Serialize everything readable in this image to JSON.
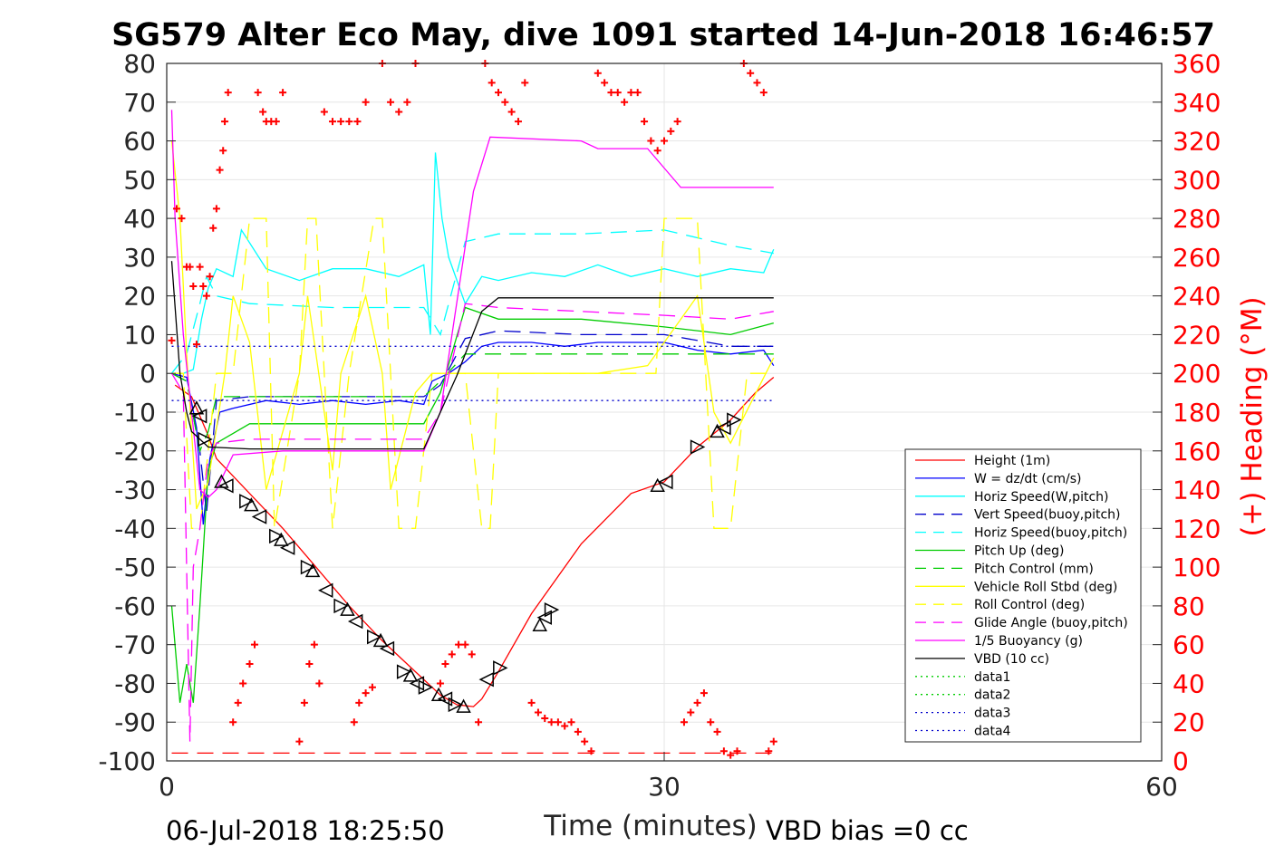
{
  "chart_data": {
    "type": "line",
    "title": "SG579 Alter Eco May, dive 1091 started 14-Jun-2018 16:46:57",
    "xlabel": "Time (minutes)",
    "ylabel": "",
    "ylabel_right": "(+) Heading (°M)",
    "xlim": [
      0,
      60
    ],
    "ylim": [
      -100,
      80
    ],
    "ylim_right": [
      0,
      360
    ],
    "xticks": [
      "0",
      "30",
      "60"
    ],
    "yticks": [
      "80",
      "70",
      "60",
      "50",
      "40",
      "30",
      "20",
      "10",
      "0",
      "-10",
      "-20",
      "-30",
      "-40",
      "-50",
      "-60",
      "-70",
      "-80",
      "-90",
      "-100"
    ],
    "yticks_right": [
      "360",
      "340",
      "320",
      "300",
      "280",
      "260",
      "240",
      "220",
      "200",
      "180",
      "160",
      "140",
      "120",
      "100",
      "80",
      "60",
      "40",
      "20",
      "0"
    ],
    "grid": true,
    "legend_position": "lower-right",
    "footer_left": "06-Jul-2018 18:25:50",
    "footer_right": "VBD bias =0 cc",
    "colors": {
      "red": "#ff0000",
      "blue": "#0000ff",
      "darkblue": "#0000cc",
      "cyan": "#00ffff",
      "green": "#00cc00",
      "yellow": "#ffff00",
      "magenta": "#ff00ff",
      "black": "#000000"
    },
    "series": [
      {
        "name": "Height (1m)",
        "color": "#ff0000",
        "style": "solid",
        "x": [
          0.5,
          1.5,
          2.0,
          2.5,
          3.0,
          5.0,
          7.0,
          9.0,
          11.0,
          13.0,
          15.0,
          16.5,
          17.5,
          18.5,
          19.0,
          20.0,
          22.0,
          25.0,
          28.0,
          30.0,
          32.0,
          34.0,
          35.5,
          36.6
        ],
        "y": [
          -3,
          -6,
          -11,
          -16,
          -22,
          -31,
          -40,
          -50,
          -60,
          -69,
          -77,
          -83,
          -85.5,
          -86,
          -84,
          -77,
          -62,
          -44,
          -31,
          -28,
          -19,
          -12,
          -5,
          -1
        ]
      },
      {
        "name": "W = dz/dt (cm/s)",
        "color": "#0000ff",
        "style": "solid",
        "x": [
          0.3,
          1.2,
          1.8,
          2.2,
          2.6,
          3.2,
          4.0,
          6.0,
          8.0,
          10.0,
          12.0,
          14.0,
          15.5,
          16.0,
          17.0,
          18.0,
          19.0,
          20.0,
          22.0,
          24.0,
          26.0,
          28.0,
          30.0,
          32.0,
          34.0,
          36.0,
          36.6
        ],
        "y": [
          0,
          -1,
          -14,
          -39,
          -22,
          -10,
          -9,
          -7,
          -8,
          -7,
          -8,
          -7,
          -8,
          -2,
          0,
          3,
          7,
          8,
          8,
          7,
          8,
          8,
          8,
          6,
          5,
          6,
          2
        ]
      },
      {
        "name": "Horiz Speed(W,pitch)",
        "color": "#00ffff",
        "style": "solid",
        "x": [
          0.3,
          1.0,
          1.6,
          2.1,
          2.5,
          3.0,
          4.0,
          4.5,
          6.0,
          8.0,
          10.0,
          12.0,
          14.0,
          15.5,
          15.9,
          16.2,
          16.6,
          17.0,
          18.0,
          19.0,
          20.0,
          22.0,
          24.0,
          26.0,
          28.0,
          30.0,
          32.0,
          34.0,
          36.0,
          36.6
        ],
        "y": [
          0,
          0,
          1,
          14,
          22,
          27,
          25,
          37,
          27,
          24,
          27,
          27,
          25,
          28,
          10,
          57,
          40,
          30,
          18,
          25,
          24,
          26,
          25,
          28,
          25,
          27,
          25,
          27,
          26,
          32
        ]
      },
      {
        "name": "Vert Speed(buoy,pitch)",
        "color": "#0000cc",
        "style": "dashed",
        "x": [
          0.3,
          1.2,
          2.0,
          2.4,
          3.0,
          5.0,
          10.0,
          15.5,
          16.5,
          18.0,
          20.0,
          25.0,
          30.0,
          34.0,
          36.6
        ],
        "y": [
          0,
          -2,
          -20,
          -36,
          -7,
          -6,
          -6,
          -6,
          -3,
          9,
          11,
          10,
          10,
          7,
          7
        ]
      },
      {
        "name": "Horiz Speed(buoy,pitch)",
        "color": "#00ffff",
        "style": "dashed",
        "x": [
          0.3,
          1.2,
          2.0,
          2.4,
          3.0,
          5.0,
          10.0,
          15.5,
          16.5,
          18.0,
          20.0,
          25.0,
          30.0,
          34.0,
          36.6
        ],
        "y": [
          0,
          5,
          18,
          25,
          20,
          18,
          17,
          17,
          10,
          34,
          36,
          36,
          37,
          33,
          31
        ]
      },
      {
        "name": "Pitch Up (deg)",
        "color": "#00cc00",
        "style": "solid",
        "x": [
          0.3,
          0.8,
          1.2,
          1.6,
          2.0,
          2.5,
          3.0,
          5.0,
          10.0,
          15.5,
          16.5,
          18.0,
          20.0,
          25.0,
          30.0,
          34.0,
          36.6
        ],
        "y": [
          -60,
          -85,
          -75,
          -85,
          -60,
          -25,
          -18,
          -13,
          -13,
          -13,
          -5,
          17,
          14,
          14,
          12,
          10,
          13
        ]
      },
      {
        "name": "Pitch Control (mm)",
        "color": "#00cc00",
        "style": "dashed",
        "x": [
          0.3,
          1.2,
          2.0,
          2.5,
          3.0,
          5.0,
          10.0,
          15.5,
          16.5,
          18.0,
          20.0,
          25.0,
          30.0,
          34.0,
          36.6
        ],
        "y": [
          0,
          -2,
          -20,
          -15,
          -6,
          -6,
          -6,
          -6,
          -2,
          5,
          5,
          5,
          5,
          5,
          5
        ]
      },
      {
        "name": "Vehicle Roll Stbd (deg)",
        "color": "#ffff00",
        "style": "solid",
        "x": [
          0.3,
          0.8,
          1.2,
          1.8,
          2.5,
          3.5,
          4.0,
          5.0,
          6.0,
          8.0,
          8.5,
          9.0,
          10.0,
          10.5,
          12.0,
          13.0,
          13.5,
          15.0,
          16.0,
          17.0,
          18.0,
          22.0,
          26.0,
          29.0,
          32.0,
          33.0,
          34.0,
          36.6
        ],
        "y": [
          60,
          40,
          5,
          -35,
          -28,
          0,
          20,
          8,
          -30,
          0,
          20,
          5,
          -25,
          0,
          20,
          0,
          -30,
          -5,
          0,
          0,
          0,
          0,
          0,
          2,
          20,
          -10,
          -18,
          4
        ]
      },
      {
        "name": "Roll Control (deg)",
        "color": "#ffff00",
        "style": "dashed",
        "x": [
          0.3,
          1.0,
          1.5,
          2.0,
          3.0,
          4.0,
          5.0,
          6.0,
          6.5,
          8.0,
          8.5,
          9.0,
          10.0,
          11.0,
          12.5,
          13.0,
          14.0,
          15.0,
          16.0,
          18.0,
          19.0,
          19.5,
          20.0,
          22.0,
          26.0,
          29.5,
          30.0,
          32.0,
          33.0,
          34.0,
          35.0,
          36.6
        ],
        "y": [
          0,
          0,
          -40,
          -40,
          0,
          0,
          40,
          40,
          -40,
          0,
          40,
          40,
          -40,
          0,
          40,
          40,
          -40,
          -40,
          0,
          0,
          -40,
          -40,
          0,
          0,
          0,
          0,
          40,
          40,
          -40,
          -40,
          0,
          0
        ]
      },
      {
        "name": "Glide Angle (buoy,pitch)",
        "color": "#ff00ff",
        "style": "dashed",
        "x": [
          0.3,
          1.0,
          1.4,
          1.6,
          2.0,
          2.5,
          3.0,
          5.0,
          10.0,
          15.5,
          16.5,
          18.0,
          20.0,
          25.0,
          30.0,
          34.0,
          36.6
        ],
        "y": [
          0,
          -5,
          -95,
          -50,
          -40,
          -22,
          -18,
          -17,
          -17,
          -17,
          -10,
          18,
          17,
          16,
          15,
          14,
          16
        ]
      },
      {
        "name": "1/5 Buoyancy (g)",
        "color": "#ff00ff",
        "style": "solid",
        "x": [
          0.3,
          0.5,
          1.0,
          1.5,
          2.0,
          2.5,
          3.0,
          4.0,
          7.0,
          10.0,
          15.5,
          16.5,
          18.5,
          19.5,
          25.0,
          26.0,
          29.0,
          30.0,
          31.0,
          36.6
        ],
        "y": [
          68,
          40,
          10,
          -10,
          -30,
          -32,
          -30,
          -21,
          -20,
          -20,
          -20,
          -10,
          47,
          61,
          60,
          58,
          58,
          53,
          48,
          48
        ]
      },
      {
        "name": "VBD (10 cc)",
        "color": "#000000",
        "style": "solid",
        "x": [
          0.3,
          0.8,
          1.2,
          1.5,
          2.0,
          2.5,
          5.0,
          10.0,
          15.5,
          17.5,
          19.0,
          20.0,
          25.0,
          30.0,
          36.6
        ],
        "y": [
          29,
          0,
          -10,
          -15,
          -17,
          -19,
          -19.5,
          -19.5,
          -19.5,
          -0.5,
          16,
          19.5,
          19.5,
          19.5,
          19.5
        ]
      },
      {
        "name": "data1",
        "color": "#00cc00",
        "style": "dotted",
        "x": [],
        "y": []
      },
      {
        "name": "data2",
        "color": "#00cc00",
        "style": "dotted",
        "x": [],
        "y": []
      },
      {
        "name": "data3",
        "color": "#0000cc",
        "style": "dotted",
        "x": [
          0.3,
          36.6
        ],
        "y": [
          7,
          7
        ]
      },
      {
        "name": "data4",
        "color": "#0000cc",
        "style": "dotted",
        "x": [
          0.3,
          36.6
        ],
        "y": [
          -7,
          -7
        ]
      }
    ],
    "extra_lines": [
      {
        "color": "#ff0000",
        "style": "dashed",
        "x": [
          0.3,
          36.6
        ],
        "y": [
          -98,
          -98
        ]
      }
    ],
    "heading_points": {
      "color": "#ff0000",
      "x": [
        0.3,
        0.6,
        0.9,
        1.2,
        1.4,
        1.6,
        1.8,
        2.0,
        2.2,
        2.4,
        2.6,
        2.8,
        3.0,
        3.2,
        3.4,
        3.5,
        3.7,
        5.5,
        5.8,
        6.0,
        6.3,
        6.6,
        7.0,
        9.5,
        10.0,
        10.5,
        11.0,
        11.5,
        12.0,
        13.0,
        13.5,
        14.0,
        14.5,
        15.0,
        4.0,
        4.3,
        4.6,
        5.0,
        5.3,
        8.0,
        8.3,
        8.6,
        8.9,
        9.2,
        11.3,
        11.6,
        12.0,
        12.4,
        16.5,
        16.8,
        17.2,
        17.6,
        18.0,
        18.4,
        18.8,
        19.2,
        19.6,
        20.0,
        20.4,
        20.8,
        21.2,
        21.6,
        22.0,
        22.4,
        22.8,
        23.2,
        23.6,
        24.0,
        24.4,
        24.8,
        25.2,
        25.6,
        26.0,
        26.4,
        26.8,
        27.2,
        27.6,
        28.0,
        28.4,
        28.8,
        29.2,
        29.6,
        30.0,
        30.4,
        30.8,
        31.2,
        31.6,
        32.0,
        32.4,
        32.8,
        33.2,
        33.6,
        34.0,
        34.4,
        34.8,
        35.2,
        35.6,
        36.0,
        36.3,
        36.6
      ],
      "y": [
        217,
        285,
        280,
        255,
        255,
        245,
        215,
        255,
        245,
        240,
        250,
        275,
        285,
        305,
        315,
        330,
        345,
        345,
        335,
        330,
        330,
        330,
        345,
        335,
        330,
        330,
        330,
        330,
        340,
        360,
        340,
        335,
        340,
        360,
        20,
        30,
        40,
        50,
        60,
        10,
        30,
        50,
        60,
        40,
        20,
        30,
        35,
        38,
        40,
        50,
        55,
        60,
        60,
        55,
        20,
        360,
        350,
        345,
        340,
        335,
        330,
        350,
        30,
        25,
        22,
        20,
        20,
        18,
        20,
        15,
        10,
        5,
        355,
        350,
        345,
        345,
        340,
        345,
        345,
        330,
        320,
        315,
        320,
        325,
        330,
        20,
        25,
        30,
        35,
        20,
        15,
        5,
        3,
        5,
        360,
        355,
        350,
        345,
        5,
        10
      ]
    },
    "markers": {
      "color": "#000000",
      "x": [
        1.8,
        2.0,
        2.3,
        3.3,
        3.6,
        4.8,
        5.1,
        5.6,
        6.6,
        6.9,
        7.3,
        8.5,
        8.8,
        9.6,
        10.5,
        10.9,
        11.4,
        12.5,
        12.9,
        13.3,
        14.3,
        14.7,
        15.1,
        15.6,
        16.4,
        16.8,
        17.4,
        17.9,
        19.3,
        20.1,
        22.5,
        22.8,
        23.2,
        29.6,
        30.1,
        32.0,
        33.2,
        33.6,
        34.2
      ],
      "y": [
        -9,
        -11,
        -17,
        -28,
        -29,
        -33,
        -34,
        -37,
        -42,
        -43,
        -45,
        -50,
        -51,
        -56,
        -60,
        -61,
        -64,
        -68,
        -69,
        -71,
        -77,
        -78,
        -80,
        -81,
        -83,
        -84,
        -85.5,
        -86,
        -79,
        -76,
        -65,
        -63,
        -61,
        -29,
        -28,
        -19,
        -15,
        -14,
        -12
      ]
    }
  }
}
